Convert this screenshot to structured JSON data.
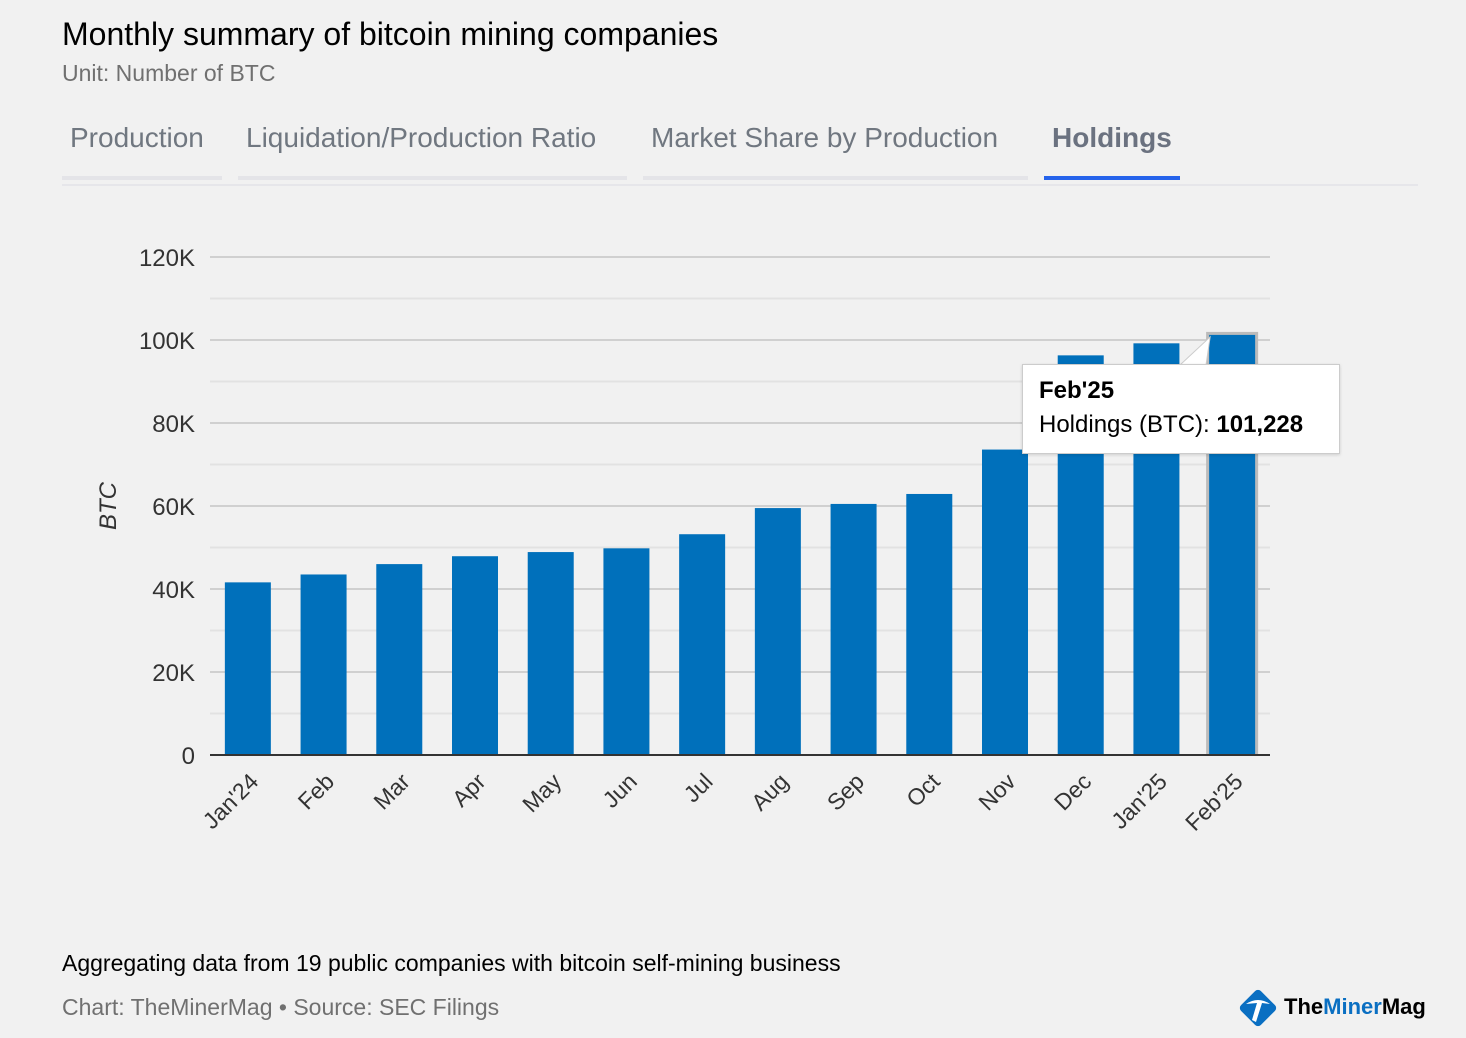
{
  "title": "Monthly summary of bitcoin mining companies",
  "subtitle": "Unit: Number of BTC",
  "tabs": [
    {
      "label": "Production",
      "active": false
    },
    {
      "label": "Liquidation/Production Ratio",
      "active": false
    },
    {
      "label": "Market Share by Production",
      "active": false
    },
    {
      "label": "Holdings",
      "active": true
    }
  ],
  "tooltip": {
    "header": "Feb'25",
    "label": "Holdings (BTC): ",
    "value": "101,228"
  },
  "footer": {
    "note": "Aggregating data from 19 public companies with bitcoin self-mining business",
    "source": "Chart: TheMinerMag • Source: SEC Filings",
    "logo_text_a": "The",
    "logo_text_b": "Miner",
    "logo_text_c": "Mag"
  },
  "colors": {
    "bar": "#0070bb",
    "accent": "#2563eb"
  },
  "chart_data": {
    "type": "bar",
    "categories": [
      "Jan'24",
      "Feb",
      "Mar",
      "Apr",
      "May",
      "Jun",
      "Jul",
      "Aug",
      "Sep",
      "Oct",
      "Nov",
      "Dec",
      "Jan'25",
      "Feb'25"
    ],
    "series": [
      {
        "name": "Holdings (BTC)",
        "values": [
          41600,
          43500,
          46000,
          47900,
          48900,
          49800,
          53200,
          59500,
          60500,
          62900,
          73600,
          96300,
          99200,
          101228
        ]
      }
    ],
    "ylabel": "BTC",
    "ylim": [
      0,
      120000
    ],
    "yticks": [
      0,
      20000,
      40000,
      60000,
      80000,
      100000,
      120000
    ],
    "ytick_labels": [
      "0",
      "20K",
      "40K",
      "60K",
      "80K",
      "100K",
      "120K"
    ],
    "grid": true,
    "highlighted": "Feb'25"
  }
}
